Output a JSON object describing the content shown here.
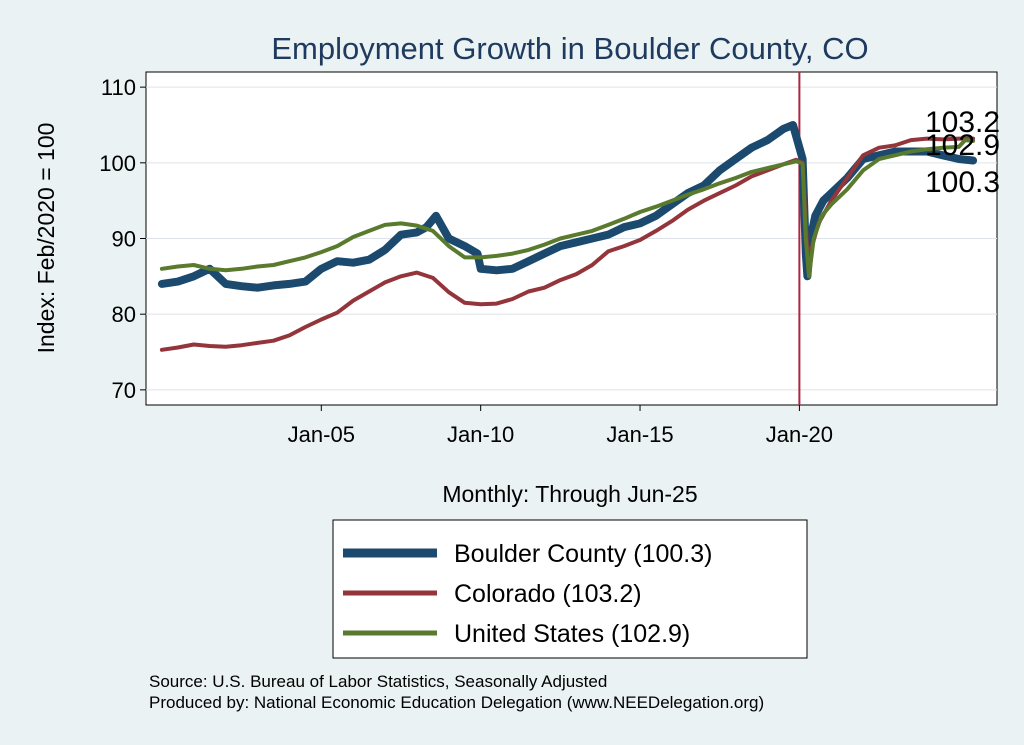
{
  "chart_data": {
    "type": "line",
    "title": "Employment Growth in Boulder  County, CO",
    "xlabel": "Monthly: Through Jun-25",
    "ylabel": "Index: Feb/2020 = 100",
    "ylim": [
      68,
      112
    ],
    "xlim": [
      1999.5,
      2026.2
    ],
    "yticks": [
      70,
      80,
      90,
      100,
      110
    ],
    "xticks": [
      {
        "label": "Jan-05",
        "value": 2005.0
      },
      {
        "label": "Jan-10",
        "value": 2010.0
      },
      {
        "label": "Jan-15",
        "value": 2015.0
      },
      {
        "label": "Jan-20",
        "value": 2020.0
      }
    ],
    "reference_line": {
      "x": 2020.0,
      "color": "#b0243e"
    },
    "grid": true,
    "legend_position": "below",
    "series": [
      {
        "name": "Boulder  County (100.3)",
        "end_label": "100.3",
        "color": "#1b4a6e",
        "x": [
          2000.0,
          2000.5,
          2001.0,
          2001.5,
          2002.0,
          2002.5,
          2003.0,
          2003.5,
          2004.0,
          2004.5,
          2005.0,
          2005.5,
          2006.0,
          2006.5,
          2007.0,
          2007.5,
          2008.0,
          2008.3,
          2008.6,
          2009.0,
          2009.5,
          2009.9,
          2010.0,
          2010.5,
          2011.0,
          2011.5,
          2012.0,
          2012.5,
          2013.0,
          2013.5,
          2014.0,
          2014.5,
          2015.0,
          2015.5,
          2016.0,
          2016.5,
          2017.0,
          2017.5,
          2018.0,
          2018.5,
          2019.0,
          2019.5,
          2019.8,
          2020.1,
          2020.2,
          2020.25,
          2020.35,
          2020.5,
          2020.75,
          2021.0,
          2021.5,
          2022.0,
          2022.5,
          2023.0,
          2023.5,
          2024.0,
          2024.5,
          2025.0,
          2025.45
        ],
        "values": [
          84.0,
          84.3,
          85.0,
          86.0,
          84.0,
          83.7,
          83.5,
          83.8,
          84.0,
          84.3,
          86.0,
          87.0,
          86.8,
          87.2,
          88.5,
          90.5,
          90.8,
          91.5,
          93.0,
          90.0,
          89.0,
          88.0,
          86.0,
          85.8,
          86.0,
          87.0,
          88.0,
          89.0,
          89.5,
          90.0,
          90.5,
          91.5,
          92.0,
          93.0,
          94.5,
          96.0,
          97.0,
          99.0,
          100.5,
          102.0,
          103.0,
          104.5,
          105.0,
          100.5,
          88.0,
          85.0,
          90.0,
          93.0,
          95.0,
          96.0,
          98.0,
          100.5,
          101.0,
          101.5,
          101.5,
          101.5,
          101.0,
          100.5,
          100.3
        ]
      },
      {
        "name": "Colorado (103.2)",
        "end_label": "103.2",
        "color": "#93353a",
        "x": [
          2000.0,
          2000.5,
          2001.0,
          2001.5,
          2002.0,
          2002.5,
          2003.0,
          2003.5,
          2004.0,
          2004.5,
          2005.0,
          2005.5,
          2006.0,
          2006.5,
          2007.0,
          2007.5,
          2008.0,
          2008.5,
          2009.0,
          2009.5,
          2010.0,
          2010.5,
          2011.0,
          2011.5,
          2012.0,
          2012.5,
          2013.0,
          2013.5,
          2014.0,
          2014.5,
          2015.0,
          2015.5,
          2016.0,
          2016.5,
          2017.0,
          2017.5,
          2018.0,
          2018.5,
          2019.0,
          2019.5,
          2019.9,
          2020.1,
          2020.25,
          2020.4,
          2020.6,
          2021.0,
          2021.5,
          2022.0,
          2022.5,
          2023.0,
          2023.5,
          2024.0,
          2024.5,
          2025.0,
          2025.45
        ],
        "values": [
          75.3,
          75.6,
          76.0,
          75.8,
          75.7,
          75.9,
          76.2,
          76.5,
          77.2,
          78.3,
          79.3,
          80.2,
          81.8,
          83.0,
          84.2,
          85.0,
          85.5,
          84.8,
          82.9,
          81.5,
          81.3,
          81.4,
          82.0,
          83.0,
          83.5,
          84.5,
          85.3,
          86.5,
          88.3,
          89.0,
          89.8,
          91.0,
          92.3,
          93.8,
          95.0,
          96.0,
          97.0,
          98.2,
          99.0,
          99.8,
          100.4,
          100.0,
          88.0,
          89.0,
          92.0,
          95.0,
          98.0,
          101.0,
          102.0,
          102.3,
          103.0,
          103.2,
          103.1,
          103.2,
          103.2
        ]
      },
      {
        "name": "United States (102.9)",
        "end_label": "102.9",
        "color": "#5a7a2e",
        "x": [
          2000.0,
          2000.5,
          2001.0,
          2001.5,
          2002.0,
          2002.5,
          2003.0,
          2003.5,
          2004.0,
          2004.5,
          2005.0,
          2005.5,
          2006.0,
          2006.5,
          2007.0,
          2007.5,
          2008.0,
          2008.5,
          2009.0,
          2009.5,
          2010.0,
          2010.5,
          2011.0,
          2011.5,
          2012.0,
          2012.5,
          2013.0,
          2013.5,
          2014.0,
          2014.5,
          2015.0,
          2015.5,
          2016.0,
          2016.5,
          2017.0,
          2017.5,
          2018.0,
          2018.5,
          2019.0,
          2019.5,
          2019.9,
          2020.1,
          2020.2,
          2020.3,
          2020.45,
          2020.7,
          2021.0,
          2021.5,
          2022.0,
          2022.5,
          2023.0,
          2023.5,
          2024.0,
          2024.5,
          2025.0,
          2025.2,
          2025.45
        ],
        "values": [
          86.0,
          86.3,
          86.5,
          86.0,
          85.8,
          86.0,
          86.3,
          86.5,
          87.0,
          87.5,
          88.2,
          89.0,
          90.2,
          91.0,
          91.8,
          92.0,
          91.7,
          91.0,
          89.0,
          87.5,
          87.5,
          87.7,
          88.0,
          88.5,
          89.2,
          90.0,
          90.5,
          91.0,
          91.8,
          92.6,
          93.5,
          94.2,
          95.0,
          95.8,
          96.5,
          97.3,
          98.0,
          98.8,
          99.3,
          99.8,
          100.2,
          99.9,
          90.0,
          85.0,
          90.0,
          93.0,
          94.5,
          96.5,
          99.0,
          100.5,
          101.0,
          101.5,
          101.8,
          102.0,
          102.1,
          103.0,
          102.9
        ]
      }
    ]
  },
  "source": {
    "line1": "Source: U.S. Bureau of Labor Statistics, Seasonally Adjusted",
    "line2": "Produced by: National Economic Education Delegation (www.NEEDelegation.org)"
  }
}
